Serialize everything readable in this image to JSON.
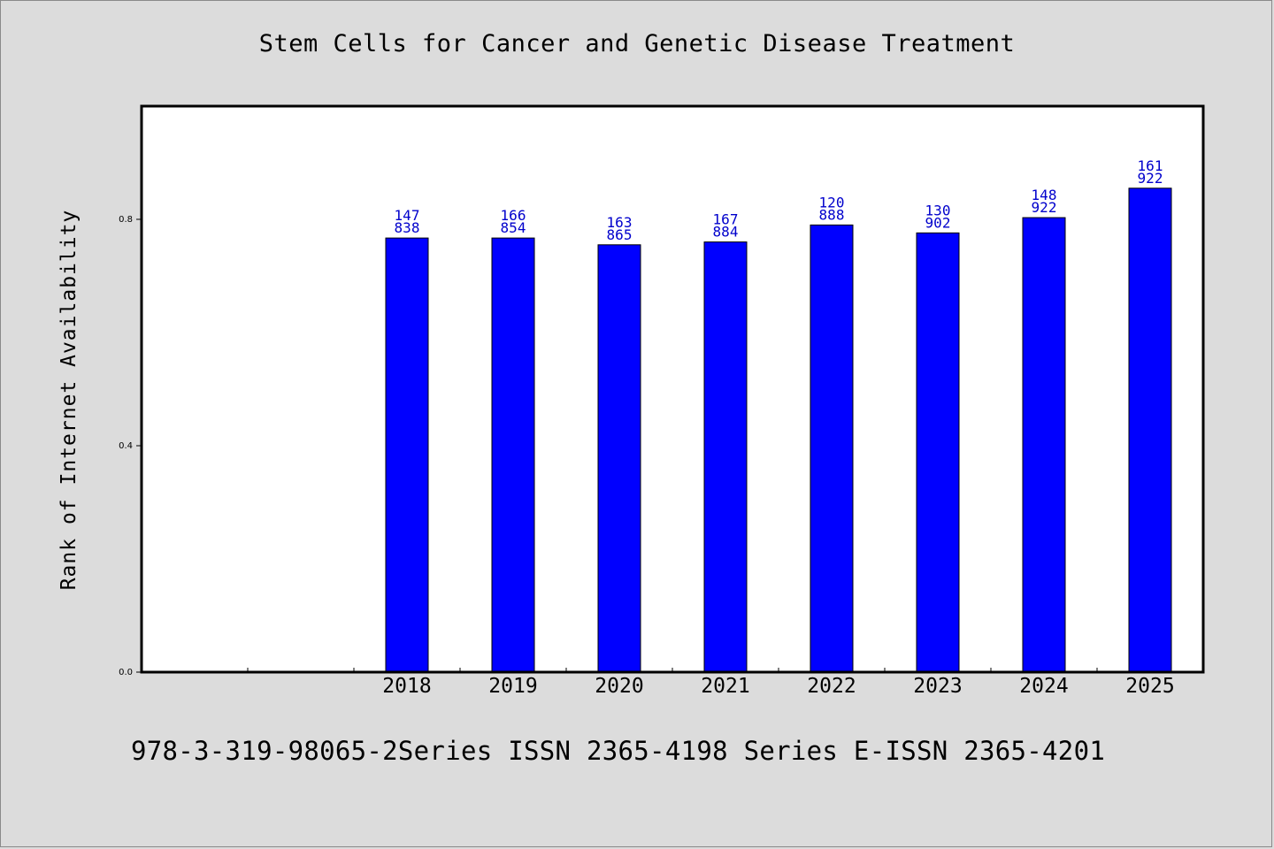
{
  "title": "Stem Cells for Cancer and Genetic Disease Treatment",
  "footer_text": "978-3-319-98065-2Series ISSN 2365-4198 Series E-ISSN 2365-4201",
  "chart_data": {
    "type": "bar",
    "title": "Stem Cells for Cancer and Genetic Disease Treatment",
    "xlabel": "",
    "ylabel": "Rank of Internet Availability",
    "categories": [
      "",
      "",
      "2018",
      "2019",
      "2020",
      "2021",
      "2022",
      "2023",
      "2024",
      "2025"
    ],
    "values": [
      null,
      null,
      0.767,
      0.767,
      0.755,
      0.76,
      0.79,
      0.776,
      0.803,
      0.855
    ],
    "data_labels": [
      [
        "",
        ""
      ],
      [
        "",
        ""
      ],
      [
        "147",
        "838"
      ],
      [
        "166",
        "854"
      ],
      [
        "163",
        "865"
      ],
      [
        "167",
        "884"
      ],
      [
        "120",
        "888"
      ],
      [
        "130",
        "902"
      ],
      [
        "148",
        "922"
      ],
      [
        "161",
        "922"
      ]
    ],
    "yticks": [
      "0.0",
      "0.4",
      "0.8"
    ],
    "ylim": [
      0,
      1.0
    ],
    "bar_color": "#0000ff",
    "label_color": "#0000cc",
    "grid": false,
    "legend": "none"
  }
}
